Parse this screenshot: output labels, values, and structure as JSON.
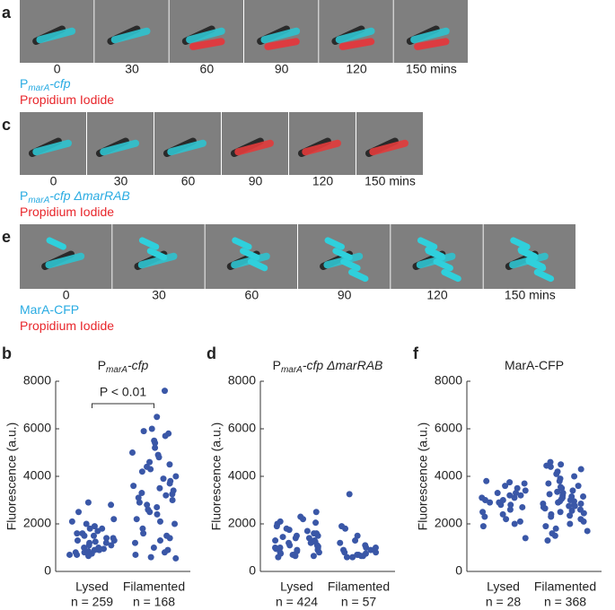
{
  "panels": [
    {
      "letter": "a",
      "times": [
        "0",
        "30",
        "60",
        "90",
        "120",
        "150 mins"
      ],
      "labels": [
        {
          "color": "#29abe2",
          "segments": [
            {
              "text": "P"
            },
            {
              "text": "marA",
              "sub": true
            },
            {
              "text": "-cfp",
              "italic": true
            }
          ]
        },
        {
          "color": "#e8262b",
          "segments": [
            {
              "text": "Propidium Iodide"
            }
          ]
        }
      ]
    },
    {
      "letter": "c",
      "times": [
        "0",
        "30",
        "60",
        "90",
        "120",
        "150 mins"
      ],
      "labels": [
        {
          "color": "#29abe2",
          "segments": [
            {
              "text": "P"
            },
            {
              "text": "marA",
              "sub": true
            },
            {
              "text": "-cfp ΔmarRAB",
              "italic": true
            }
          ]
        },
        {
          "color": "#e8262b",
          "segments": [
            {
              "text": "Propidium Iodide"
            }
          ]
        }
      ]
    },
    {
      "letter": "e",
      "times": [
        "0",
        "30",
        "60",
        "90",
        "120",
        "150 mins"
      ],
      "labels": [
        {
          "color": "#29abe2",
          "segments": [
            {
              "text": "MarA-CFP"
            }
          ]
        },
        {
          "color": "#e8262b",
          "segments": [
            {
              "text": "Propidium Iodide"
            }
          ]
        }
      ]
    }
  ],
  "chart_data": [
    {
      "type": "scatter",
      "letter": "b",
      "title": [
        {
          "text": "P"
        },
        {
          "text": "marA",
          "sub": true
        },
        {
          "text": "-cfp",
          "italic": true
        }
      ],
      "y_label": "Fluorescence (a.u.)",
      "categories": [
        "Lysed",
        "Filamented"
      ],
      "counts": [
        "n = 259",
        "n = 168"
      ],
      "color": "#3a57a7",
      "ylim": [
        0,
        8000
      ],
      "yticks": [
        0,
        2000,
        4000,
        6000,
        8000
      ],
      "annotation": "P < 0.01",
      "values": [
        [
          2800,
          2100,
          1900,
          2000,
          1800,
          1700,
          1600,
          1500,
          1500,
          1400,
          1400,
          1300,
          1300,
          1200,
          1200,
          1100,
          1100,
          1000,
          1000,
          950,
          900,
          900,
          850,
          800,
          800,
          750,
          700,
          700,
          650,
          2200,
          1800,
          1600,
          2900,
          2500,
          1250
        ],
        [
          7600,
          6500,
          6000,
          5900,
          5800,
          5700,
          5500,
          5400,
          5200,
          5000,
          4900,
          4800,
          4600,
          4500,
          4400,
          4300,
          4200,
          4000,
          3900,
          3800,
          3700,
          3600,
          3500,
          3400,
          3300,
          3200,
          3100,
          3000,
          2900,
          2800,
          2700,
          2600,
          2500,
          2400,
          2200,
          2100,
          2000,
          1800,
          1600,
          1500,
          1400,
          1300,
          1200,
          1000,
          900,
          800,
          700,
          600,
          550,
          3250
        ]
      ]
    },
    {
      "type": "scatter",
      "letter": "d",
      "title": [
        {
          "text": "P"
        },
        {
          "text": "marA",
          "sub": true
        },
        {
          "text": "-cfp ΔmarRAB",
          "italic": true
        }
      ],
      "y_label": "Fluorescence (a.u.)",
      "categories": [
        "Lysed",
        "Filamented"
      ],
      "counts": [
        "n = 424",
        "n = 57"
      ],
      "color": "#3a57a7",
      "ylim": [
        0,
        8000
      ],
      "yticks": [
        0,
        2000,
        4000,
        6000,
        8000
      ],
      "values": [
        [
          2500,
          2300,
          2200,
          2100,
          2000,
          1900,
          1800,
          1700,
          1600,
          1500,
          1500,
          1400,
          1400,
          1300,
          1300,
          1200,
          1200,
          1100,
          1100,
          1000,
          1000,
          950,
          900,
          900,
          850,
          800,
          800,
          750,
          700,
          700,
          650,
          650,
          600,
          1600,
          1250,
          1050,
          1750,
          1450,
          2050,
          980
        ],
        [
          3250,
          1900,
          1800,
          1500,
          1300,
          1200,
          1100,
          1000,
          900,
          900,
          800,
          800,
          700,
          700,
          650,
          650,
          600,
          600,
          1000,
          750
        ]
      ]
    },
    {
      "type": "scatter",
      "letter": "f",
      "title": [
        {
          "text": "MarA-CFP"
        }
      ],
      "y_label": "Fluorescence (a.u.)",
      "categories": [
        "Lysed",
        "Filamented"
      ],
      "counts": [
        "n = 28",
        "n = 368"
      ],
      "color": "#3a57a7",
      "ylim": [
        0,
        8000
      ],
      "yticks": [
        0,
        2000,
        4000,
        6000,
        8000
      ],
      "values": [
        [
          3800,
          3750,
          3700,
          3600,
          3500,
          3400,
          3300,
          3200,
          3200,
          3100,
          3100,
          3000,
          3000,
          2900,
          2900,
          2800,
          2700,
          2600,
          2500,
          2400,
          2300,
          2200,
          2100,
          2000,
          1900,
          1400,
          3300,
          2800
        ],
        [
          4600,
          4500,
          4450,
          4400,
          4300,
          4200,
          4100,
          4000,
          3900,
          3800,
          3700,
          3600,
          3500,
          3400,
          3350,
          3300,
          3200,
          3150,
          3100,
          3000,
          2950,
          2900,
          2850,
          2800,
          2750,
          2700,
          2600,
          2550,
          2500,
          2400,
          2300,
          2200,
          2100,
          2000,
          1900,
          1800,
          1700,
          1600,
          1500,
          1300,
          3050,
          2650,
          3250,
          2450,
          3550,
          2350,
          2850,
          3150,
          2750,
          2950
        ]
      ]
    }
  ]
}
